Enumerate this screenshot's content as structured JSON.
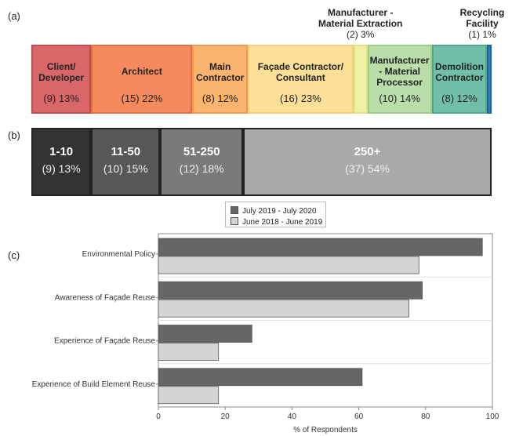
{
  "panel_a": {
    "label": "(a)",
    "segments": [
      {
        "name": "Client/\nDeveloper",
        "value": "(9) 13%",
        "count": 9,
        "percent": 13,
        "fill": "#d9676a",
        "border": "#c04a4f",
        "label_pos": "inside"
      },
      {
        "name": "Architect",
        "value": "(15) 22%",
        "count": 15,
        "percent": 22,
        "fill": "#f58b5c",
        "border": "#e26f3e",
        "label_pos": "inside"
      },
      {
        "name": "Main\nContractor",
        "value": "(8) 12%",
        "count": 8,
        "percent": 12,
        "fill": "#fbb46e",
        "border": "#f09a4f",
        "label_pos": "inside"
      },
      {
        "name": "Façade Contractor/\nConsultant",
        "value": "(16) 23%",
        "count": 16,
        "percent": 23,
        "fill": "#fddf97",
        "border": "#f4cd78",
        "label_pos": "inside"
      },
      {
        "name": "Manufacturer -\nMaterial Extraction",
        "value": "(2) 3%",
        "count": 2,
        "percent": 3,
        "fill": "#eef1a3",
        "border": "#dfe387",
        "label_pos": "above"
      },
      {
        "name": "Manufacturer\n- Material\nProcessor",
        "value": "(10) 14%",
        "count": 10,
        "percent": 14,
        "fill": "#b9deaa",
        "border": "#9ccd8b",
        "label_pos": "inside"
      },
      {
        "name": "Demolition\nContractor",
        "value": "(8) 12%",
        "count": 8,
        "percent": 12,
        "fill": "#72bfa9",
        "border": "#4ea78f",
        "label_pos": "inside"
      },
      {
        "name": "Recycling\nFacility",
        "value": "(1) 1%",
        "count": 1,
        "percent": 1,
        "fill": "#2f7fc8",
        "border": "#1f62a3",
        "label_pos": "above"
      }
    ]
  },
  "panel_b": {
    "label": "(b)",
    "segments": [
      {
        "name": "1-10",
        "value": "(9) 13%",
        "count": 9,
        "percent": 13,
        "fill": "#333333"
      },
      {
        "name": "11-50",
        "value": "(10) 15%",
        "count": 10,
        "percent": 15,
        "fill": "#575757"
      },
      {
        "name": "51-250",
        "value": "(12) 18%",
        "count": 12,
        "percent": 18,
        "fill": "#7a7a7a"
      },
      {
        "name": "250+",
        "value": "(37) 54%",
        "count": 37,
        "percent": 54,
        "fill": "#a9a9a9"
      }
    ]
  },
  "chart_data": {
    "label": "(c)",
    "type": "bar",
    "orientation": "horizontal",
    "categories": [
      "Environmental Policy",
      "Awareness of Façade Reuse",
      "Experience of Façade Reuse",
      "Experience of Build Element Reuse"
    ],
    "series": [
      {
        "name": "July 2019 - July 2020",
        "values": [
          97,
          79,
          28,
          61
        ],
        "color": "#666666"
      },
      {
        "name": "June 2018 - June 2019",
        "values": [
          78,
          75,
          18,
          18
        ],
        "color": "#d4d4d4"
      }
    ],
    "xlabel": "% of Respondents",
    "xlim": [
      0,
      100
    ],
    "xticks": [
      "0",
      "20",
      "40",
      "60",
      "80",
      "100"
    ],
    "legend_position": "top-center",
    "grid": "horizontal"
  }
}
